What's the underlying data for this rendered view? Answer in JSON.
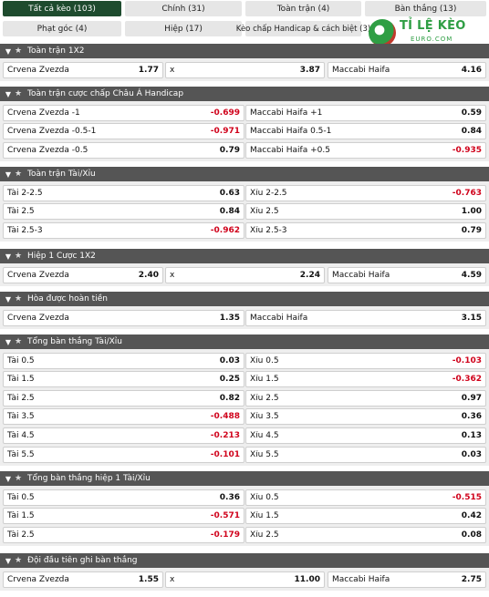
{
  "tabs": [
    {
      "label": "Tất cả kèo (103)",
      "active": true
    },
    {
      "label": "Chính (31)"
    },
    {
      "label": "Toàn trận (4)"
    },
    {
      "label": "Bàn thắng (13)"
    },
    {
      "label": "Phạt góc (4)"
    },
    {
      "label": "Hiệp (17)"
    },
    {
      "label": "Kèo chấp Handicap & cách biệt (3)"
    }
  ],
  "logo": {
    "brand": "TỈ LỆ KÈO",
    "sub": "EURO.COM"
  },
  "sections": [
    {
      "title": "Toàn trận 1X2",
      "layout": "three",
      "rows": [
        [
          {
            "label": "Crvena Zvezda",
            "value": "1.77"
          },
          {
            "label": "x",
            "value": "3.87"
          },
          {
            "label": "Maccabi Haifa",
            "value": "4.16"
          }
        ]
      ]
    },
    {
      "title": "Toàn trận cược chấp Châu Á Handicap",
      "layout": "two",
      "rows": [
        [
          {
            "label": "Crvena Zvezda -1",
            "value": "-0.699"
          },
          {
            "label": "Maccabi Haifa +1",
            "value": "0.59"
          }
        ],
        [
          {
            "label": "Crvena Zvezda -0.5-1",
            "value": "-0.971"
          },
          {
            "label": "Maccabi Haifa 0.5-1",
            "value": "0.84"
          }
        ],
        [
          {
            "label": "Crvena Zvezda -0.5",
            "value": "0.79"
          },
          {
            "label": "Maccabi Haifa +0.5",
            "value": "-0.935"
          }
        ]
      ]
    },
    {
      "title": "Toàn trận Tài/Xỉu",
      "layout": "two",
      "rows": [
        [
          {
            "label": "Tài 2-2.5",
            "value": "0.63"
          },
          {
            "label": "Xỉu 2-2.5",
            "value": "-0.763"
          }
        ],
        [
          {
            "label": "Tài 2.5",
            "value": "0.84"
          },
          {
            "label": "Xỉu 2.5",
            "value": "1.00"
          }
        ],
        [
          {
            "label": "Tài 2.5-3",
            "value": "-0.962"
          },
          {
            "label": "Xỉu 2.5-3",
            "value": "0.79"
          }
        ]
      ]
    },
    {
      "title": "Hiệp 1 Cược 1X2",
      "layout": "three",
      "rows": [
        [
          {
            "label": "Crvena Zvezda",
            "value": "2.40"
          },
          {
            "label": "x",
            "value": "2.24"
          },
          {
            "label": "Maccabi Haifa",
            "value": "4.59"
          }
        ]
      ]
    },
    {
      "title": "Hòa được hoàn tiền",
      "layout": "two",
      "rows": [
        [
          {
            "label": "Crvena Zvezda",
            "value": "1.35"
          },
          {
            "label": "Maccabi Haifa",
            "value": "3.15"
          }
        ]
      ]
    },
    {
      "title": "Tổng bàn thắng Tài/Xỉu",
      "layout": "two",
      "rows": [
        [
          {
            "label": "Tài 0.5",
            "value": "0.03"
          },
          {
            "label": "Xỉu 0.5",
            "value": "-0.103"
          }
        ],
        [
          {
            "label": "Tài 1.5",
            "value": "0.25"
          },
          {
            "label": "Xỉu 1.5",
            "value": "-0.362"
          }
        ],
        [
          {
            "label": "Tài 2.5",
            "value": "0.82"
          },
          {
            "label": "Xỉu 2.5",
            "value": "0.97"
          }
        ],
        [
          {
            "label": "Tài 3.5",
            "value": "-0.488"
          },
          {
            "label": "Xỉu 3.5",
            "value": "0.36"
          }
        ],
        [
          {
            "label": "Tài 4.5",
            "value": "-0.213"
          },
          {
            "label": "Xỉu 4.5",
            "value": "0.13"
          }
        ],
        [
          {
            "label": "Tài 5.5",
            "value": "-0.101"
          },
          {
            "label": "Xỉu 5.5",
            "value": "0.03"
          }
        ]
      ]
    },
    {
      "title": "Tổng bàn thắng hiệp 1 Tài/Xỉu",
      "layout": "two",
      "rows": [
        [
          {
            "label": "Tài 0.5",
            "value": "0.36"
          },
          {
            "label": "Xỉu 0.5",
            "value": "-0.515"
          }
        ],
        [
          {
            "label": "Tài 1.5",
            "value": "-0.571"
          },
          {
            "label": "Xỉu 1.5",
            "value": "0.42"
          }
        ],
        [
          {
            "label": "Tài 2.5",
            "value": "-0.179"
          },
          {
            "label": "Xỉu 2.5",
            "value": "0.08"
          }
        ]
      ]
    },
    {
      "title": "Đội đầu tiên ghi bàn thắng",
      "layout": "three",
      "rows": [
        [
          {
            "label": "Crvena Zvezda",
            "value": "1.55"
          },
          {
            "label": "x",
            "value": "11.00"
          },
          {
            "label": "Maccabi Haifa",
            "value": "2.75"
          }
        ]
      ]
    }
  ],
  "colors": {
    "header_bg": "#555555",
    "active_tab": "#1e4b2e",
    "negative": "#d0021b"
  },
  "icons": {
    "collapse": "chevron-down-icon",
    "favorite": "star-icon"
  }
}
